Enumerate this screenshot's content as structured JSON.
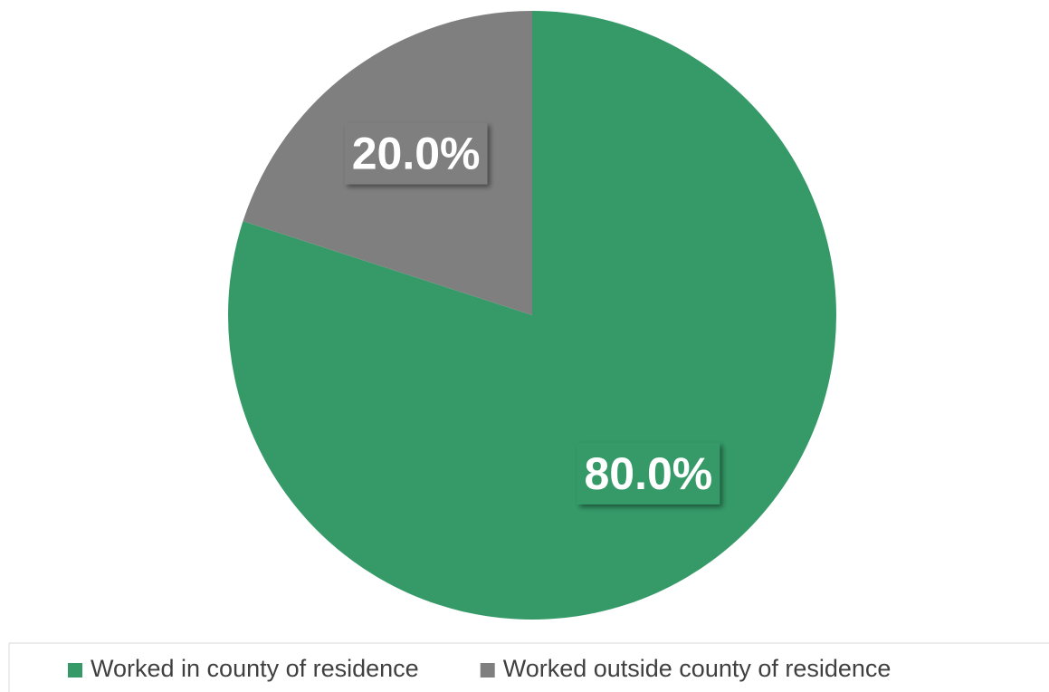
{
  "chart_data": {
    "type": "pie",
    "categories": [
      "Worked in county of residence",
      "Worked outside county of residence"
    ],
    "values": [
      80,
      20
    ],
    "value_labels": [
      "80.0%",
      "20.0%"
    ],
    "colors": [
      "#359a68",
      "#7f7f7f"
    ],
    "legend": "bottom"
  }
}
